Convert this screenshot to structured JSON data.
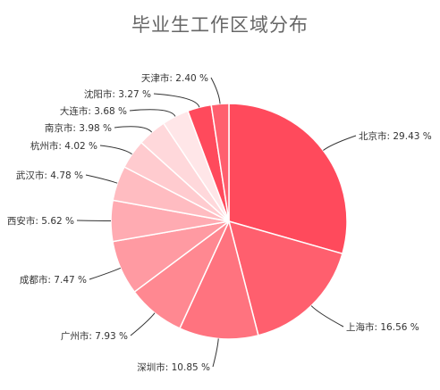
{
  "chart_data": {
    "type": "pie",
    "title": "毕业生工作区域分布",
    "slices": [
      {
        "name": "北京市",
        "value": 29.43,
        "label": "北京市: 29.43 %",
        "color": "#ff4a5c"
      },
      {
        "name": "上海市",
        "value": 16.56,
        "label": "上海市: 16.56 %",
        "color": "#ff5f6e"
      },
      {
        "name": "深圳市",
        "value": 10.85,
        "label": "深圳市: 10.85 %",
        "color": "#ff737f"
      },
      {
        "name": "广州市",
        "value": 7.93,
        "label": "广州市: 7.93 %",
        "color": "#ff8891"
      },
      {
        "name": "成都市",
        "value": 7.47,
        "label": "成都市: 7.47 %",
        "color": "#ff9aa2"
      },
      {
        "name": "西安市",
        "value": 5.62,
        "label": "西安市: 5.62 %",
        "color": "#ffabb2"
      },
      {
        "name": "武汉市",
        "value": 4.78,
        "label": "武汉市: 4.78 %",
        "color": "#ffbcc1"
      },
      {
        "name": "杭州市",
        "value": 4.02,
        "label": "杭州市: 4.02 %",
        "color": "#ffcbcf"
      },
      {
        "name": "南京市",
        "value": 3.98,
        "label": "南京市: 3.98 %",
        "color": "#ffd8db"
      },
      {
        "name": "大连市",
        "value": 3.68,
        "label": "大连市: 3.68 %",
        "color": "#ffe6e8"
      },
      {
        "name": "沈阳市",
        "value": 3.27,
        "label": "沈阳市: 3.27 %",
        "color": "#ff4a5c"
      },
      {
        "name": "天津市",
        "value": 2.4,
        "label": "天津市: 2.40 %",
        "color": "#ff5f6e"
      }
    ],
    "legend": "none"
  }
}
